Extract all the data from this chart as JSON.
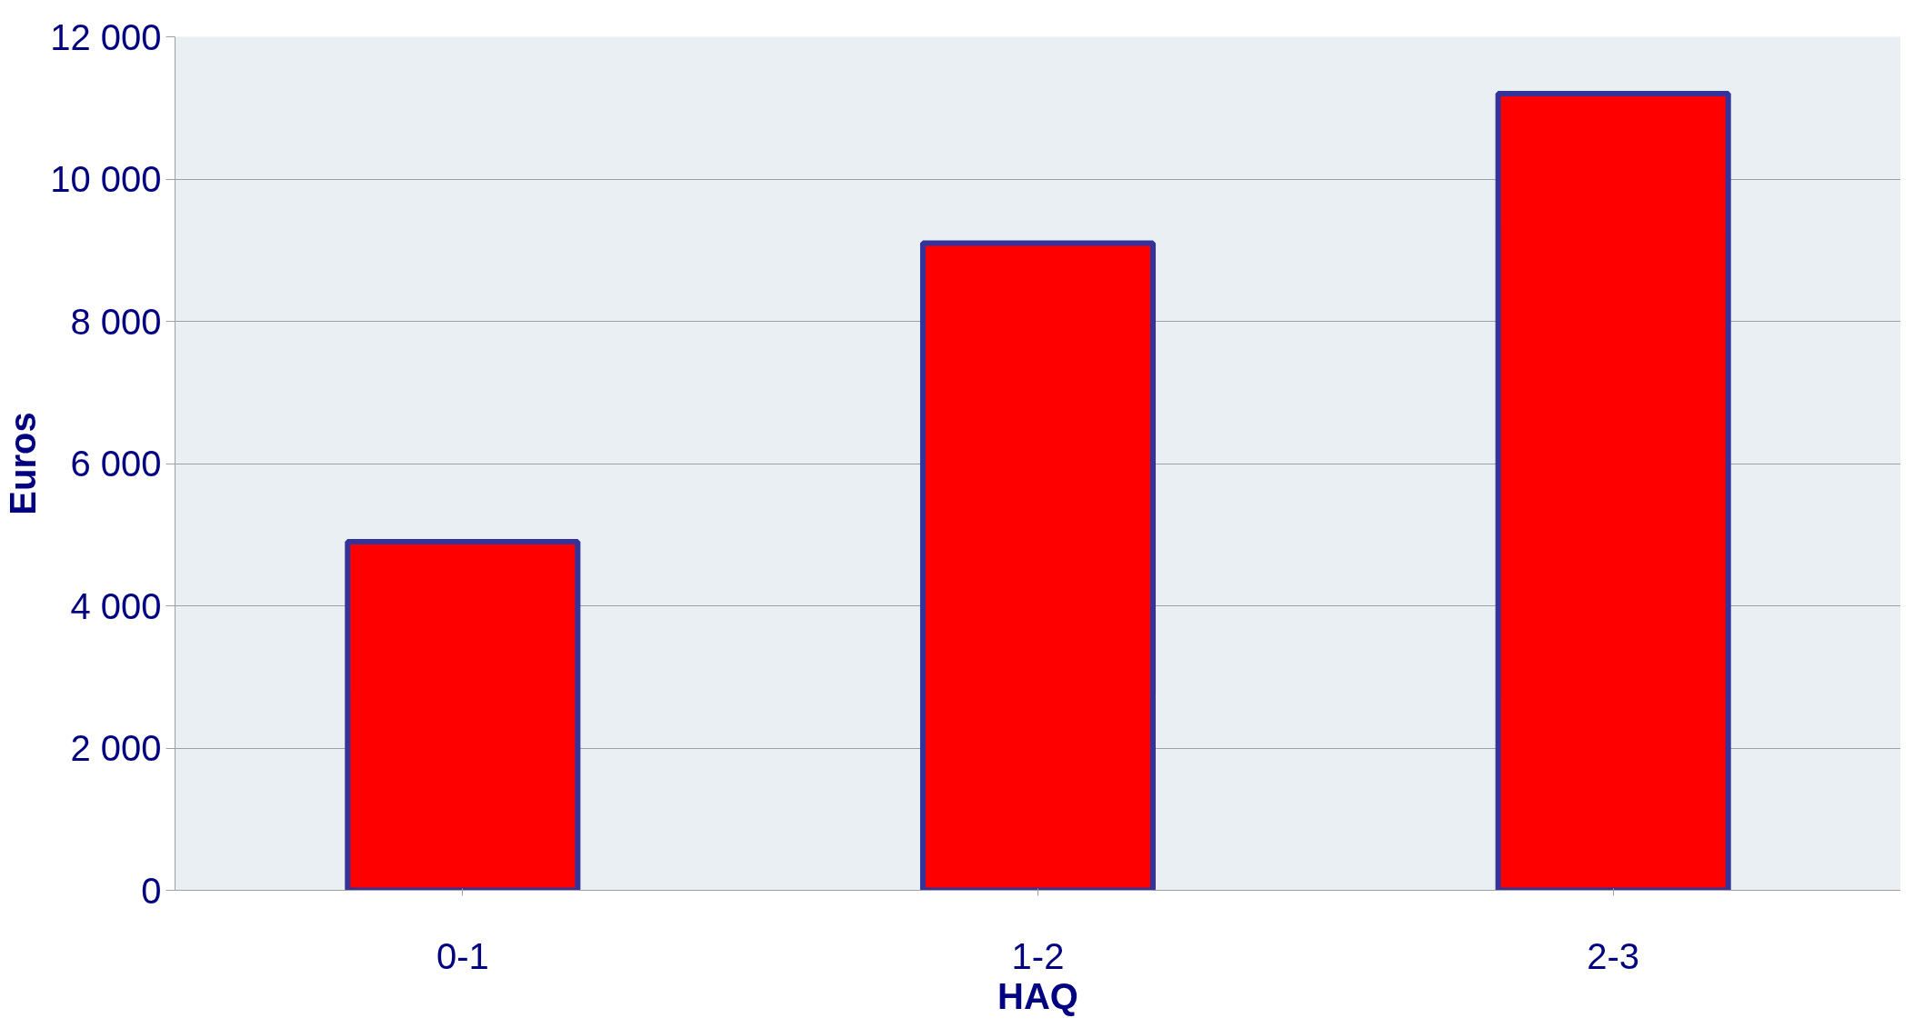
{
  "chart_data": {
    "type": "bar",
    "xlabel": "HAQ",
    "ylabel": "Euros",
    "categories": [
      "0-1",
      "1-2",
      "2-3"
    ],
    "series": [
      {
        "color": "#ff0000",
        "values": [
          4900,
          9100,
          11200
        ]
      }
    ],
    "ylim": [
      0,
      12000
    ],
    "yticks": [
      0,
      {
        "value": 2000,
        "label": "2 000"
      },
      {
        "value": 4000,
        "label": "4 000"
      },
      {
        "value": 6000,
        "label": "6 000"
      },
      {
        "value": 8000,
        "label": "8 000"
      },
      {
        "value": 10000,
        "label": "10 000"
      },
      {
        "value": 12000,
        "label": "12 000"
      }
    ],
    "grid": "y"
  }
}
